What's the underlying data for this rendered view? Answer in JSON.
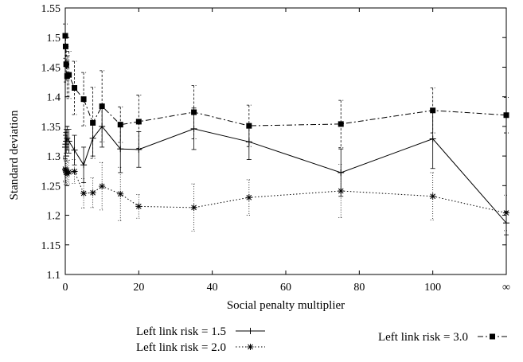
{
  "chart_data": {
    "type": "line",
    "xlabel": "Social penalty multiplier",
    "ylabel": "Standard deviation",
    "ylim": [
      1.1,
      1.55
    ],
    "xlim": [
      0,
      120
    ],
    "x_tick_labels": [
      "0",
      "20",
      "40",
      "60",
      "80",
      "100",
      "∞"
    ],
    "y_tick_labels": [
      "1.1",
      "1.15",
      "1.2",
      "1.25",
      "1.3",
      "1.35",
      "1.4",
      "1.45",
      "1.5",
      "1.55"
    ],
    "x_note": "last x position is plotted at the tick labelled ∞",
    "grid": false,
    "legend_position": "bottom",
    "series": [
      {
        "name": "Left link risk = 1.5",
        "marker": "plus",
        "line_style": "solid",
        "x": [
          0,
          0.1,
          0.25,
          0.5,
          1,
          2.5,
          5,
          7.5,
          10,
          15,
          20,
          35,
          50,
          75,
          100,
          120
        ],
        "y": [
          1.315,
          1.32,
          1.325,
          1.33,
          1.325,
          1.31,
          1.285,
          1.33,
          1.35,
          1.312,
          1.311,
          1.346,
          1.324,
          1.272,
          1.329,
          1.187
        ],
        "err": [
          0.02,
          0.02,
          0.02,
          0.02,
          0.02,
          0.025,
          0.03,
          0.03,
          0.035,
          0.04,
          0.03,
          0.035,
          0.03,
          0.04,
          0.05,
          0.02
        ]
      },
      {
        "name": "Left link risk = 2.0",
        "marker": "star",
        "line_style": "dotted",
        "x": [
          0,
          0.1,
          0.25,
          0.5,
          1,
          2.5,
          5,
          7.5,
          10,
          15,
          20,
          35,
          50,
          75,
          100,
          120
        ],
        "y": [
          1.278,
          1.276,
          1.272,
          1.27,
          1.273,
          1.274,
          1.237,
          1.238,
          1.249,
          1.236,
          1.215,
          1.213,
          1.23,
          1.241,
          1.232,
          1.204
        ],
        "err": [
          0.02,
          0.02,
          0.02,
          0.02,
          0.02,
          0.02,
          0.025,
          0.025,
          0.04,
          0.045,
          0.02,
          0.04,
          0.03,
          0.045,
          0.04,
          0.03
        ]
      },
      {
        "name": "Left link risk = 3.0",
        "marker": "filled-square",
        "line_style": "dash-dot",
        "x": [
          0,
          0.1,
          0.25,
          0.5,
          1,
          2.5,
          5,
          7.5,
          10,
          15,
          20,
          35,
          50,
          75,
          100,
          120
        ],
        "y": [
          1.503,
          1.485,
          1.455,
          1.435,
          1.437,
          1.415,
          1.396,
          1.356,
          1.384,
          1.353,
          1.358,
          1.374,
          1.351,
          1.354,
          1.377,
          1.369
        ],
        "err": [
          0.02,
          0.02,
          0.03,
          0.035,
          0.04,
          0.045,
          0.045,
          0.06,
          0.06,
          0.03,
          0.045,
          0.045,
          0.035,
          0.04,
          0.038,
          0.03
        ]
      }
    ]
  }
}
